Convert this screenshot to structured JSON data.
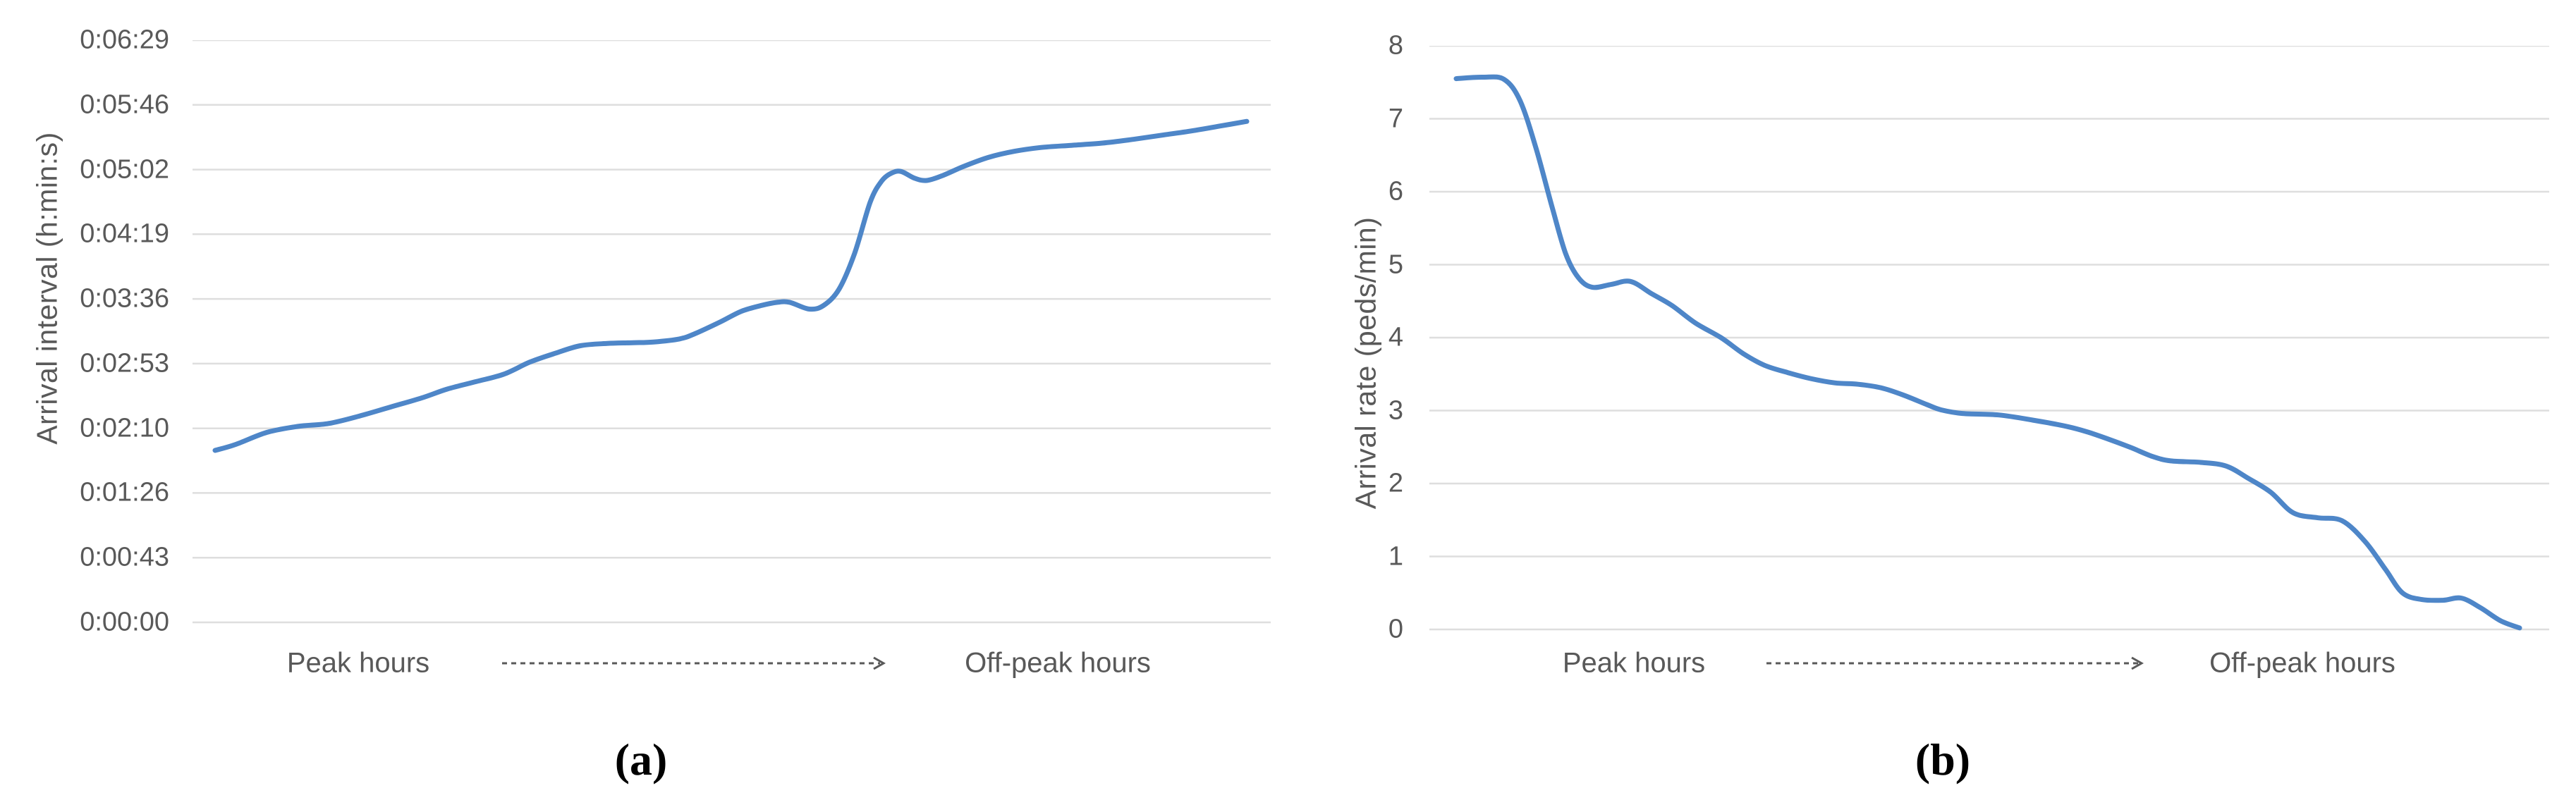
{
  "figure": {
    "background": "#ffffff",
    "panel_count": 2
  },
  "chart_data": [
    {
      "id": "a",
      "type": "line",
      "caption": "(a)",
      "title": "",
      "ylabel": "Arrival interval (h:min:s)",
      "ytick_labels": [
        "0:06:29",
        "0:05:46",
        "0:05:02",
        "0:04:19",
        "0:03:36",
        "0:02:53",
        "0:02:10",
        "0:01:26",
        "0:00:43",
        "0:00:00"
      ],
      "ytick_values_seconds": [
        389,
        346,
        302,
        259,
        216,
        173,
        130,
        86,
        43,
        0
      ],
      "ylim": [
        0,
        389.3
      ],
      "grid": "horizontal-only",
      "legend": null,
      "x_left_label": "Peak hours",
      "x_right_label": "Off-peak hours",
      "x_connector": "dashed-arrow-right",
      "series_name": "arrival interval (seconds)",
      "points": [
        [
          0.0,
          115
        ],
        [
          0.02,
          119
        ],
        [
          0.05,
          127
        ],
        [
          0.08,
          131
        ],
        [
          0.11,
          133
        ],
        [
          0.14,
          138
        ],
        [
          0.17,
          144
        ],
        [
          0.2,
          150
        ],
        [
          0.225,
          156
        ],
        [
          0.253,
          161
        ],
        [
          0.28,
          166
        ],
        [
          0.305,
          174
        ],
        [
          0.33,
          180
        ],
        [
          0.354,
          185
        ],
        [
          0.38,
          186.5
        ],
        [
          0.405,
          187
        ],
        [
          0.425,
          187.5
        ],
        [
          0.45,
          189.5
        ],
        [
          0.465,
          193
        ],
        [
          0.49,
          201
        ],
        [
          0.51,
          208
        ],
        [
          0.53,
          212
        ],
        [
          0.545,
          214
        ],
        [
          0.557,
          214
        ],
        [
          0.576,
          209.5
        ],
        [
          0.59,
          212
        ],
        [
          0.605,
          223
        ],
        [
          0.62,
          247
        ],
        [
          0.635,
          281
        ],
        [
          0.646,
          295
        ],
        [
          0.656,
          300.5
        ],
        [
          0.665,
          301.5
        ],
        [
          0.678,
          297
        ],
        [
          0.69,
          295.5
        ],
        [
          0.706,
          299
        ],
        [
          0.726,
          305
        ],
        [
          0.75,
          311
        ],
        [
          0.775,
          315
        ],
        [
          0.8,
          317.5
        ],
        [
          0.83,
          319
        ],
        [
          0.86,
          320.5
        ],
        [
          0.89,
          323
        ],
        [
          0.92,
          326
        ],
        [
          0.95,
          329
        ],
        [
          0.975,
          332
        ],
        [
          1.0,
          335
        ]
      ],
      "colors": {
        "line": "#4e86c8",
        "gridline": "#dedede",
        "text": "#595959",
        "caption": "#000000"
      }
    },
    {
      "id": "b",
      "type": "line",
      "caption": "(b)",
      "title": "",
      "ylabel": "Arrival rate (peds/min)",
      "ytick_labels": [
        "8",
        "7",
        "6",
        "5",
        "4",
        "3",
        "2",
        "1",
        "0"
      ],
      "ytick_values": [
        8,
        7,
        6,
        5,
        4,
        3,
        2,
        1,
        0
      ],
      "ylim": [
        0,
        8
      ],
      "grid": "horizontal-only",
      "legend": null,
      "x_left_label": "Peak hours",
      "x_right_label": "Off-peak hours",
      "x_connector": "dashed-arrow-right",
      "series_name": "arrival rate (peds/min)",
      "points": [
        [
          0.0,
          7.55
        ],
        [
          0.025,
          7.57
        ],
        [
          0.045,
          7.54
        ],
        [
          0.06,
          7.25
        ],
        [
          0.075,
          6.6
        ],
        [
          0.09,
          5.8
        ],
        [
          0.103,
          5.15
        ],
        [
          0.115,
          4.82
        ],
        [
          0.128,
          4.69
        ],
        [
          0.146,
          4.73
        ],
        [
          0.164,
          4.77
        ],
        [
          0.184,
          4.6
        ],
        [
          0.203,
          4.44
        ],
        [
          0.225,
          4.2
        ],
        [
          0.249,
          4.0
        ],
        [
          0.27,
          3.78
        ],
        [
          0.29,
          3.62
        ],
        [
          0.312,
          3.52
        ],
        [
          0.333,
          3.44
        ],
        [
          0.356,
          3.38
        ],
        [
          0.378,
          3.36
        ],
        [
          0.4,
          3.31
        ],
        [
          0.421,
          3.21
        ],
        [
          0.443,
          3.08
        ],
        [
          0.456,
          3.01
        ],
        [
          0.476,
          2.96
        ],
        [
          0.51,
          2.94
        ],
        [
          0.542,
          2.87
        ],
        [
          0.575,
          2.78
        ],
        [
          0.595,
          2.7
        ],
        [
          0.615,
          2.6
        ],
        [
          0.635,
          2.49
        ],
        [
          0.655,
          2.37
        ],
        [
          0.672,
          2.31
        ],
        [
          0.7,
          2.29
        ],
        [
          0.724,
          2.24
        ],
        [
          0.745,
          2.07
        ],
        [
          0.766,
          1.88
        ],
        [
          0.787,
          1.6
        ],
        [
          0.81,
          1.53
        ],
        [
          0.833,
          1.49
        ],
        [
          0.855,
          1.2
        ],
        [
          0.874,
          0.82
        ],
        [
          0.89,
          0.5
        ],
        [
          0.908,
          0.41
        ],
        [
          0.928,
          0.4
        ],
        [
          0.945,
          0.43
        ],
        [
          0.963,
          0.3
        ],
        [
          0.982,
          0.12
        ],
        [
          1.0,
          0.02
        ]
      ],
      "colors": {
        "line": "#4e86c8",
        "gridline": "#dedede",
        "text": "#595959",
        "caption": "#000000"
      }
    }
  ]
}
